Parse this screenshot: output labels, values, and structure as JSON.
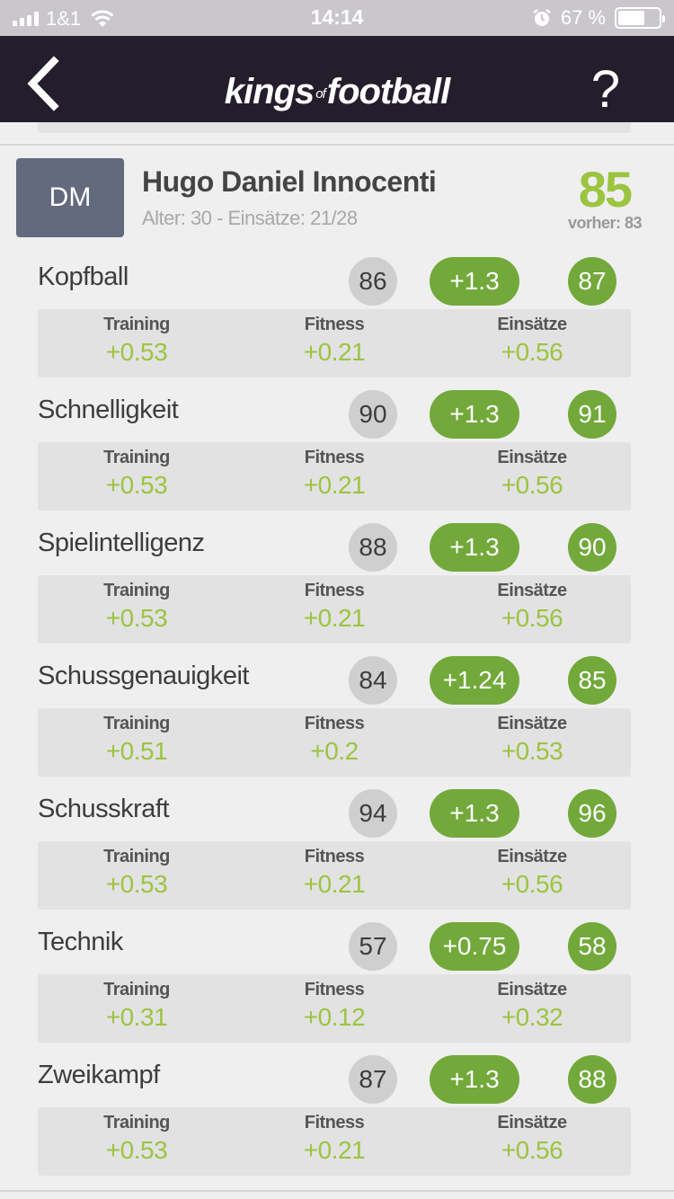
{
  "status_bar": {
    "carrier": "1&1",
    "time": "14:14",
    "battery": "67 %",
    "battery_level": 0.67
  },
  "nav": {
    "logo_kings": "kings",
    "logo_of": "of",
    "logo_football": "football",
    "help": "?"
  },
  "player": {
    "position": "DM",
    "name": "Hugo Daniel Innocenti",
    "meta": "Alter: 30 - Einsätze: 21/28",
    "rating": "85",
    "previous": "vorher: 83"
  },
  "headers": {
    "training": "Training",
    "fitness": "Fitness",
    "einsaetze": "Einsätze"
  },
  "attributes": [
    {
      "label": "Kopfball",
      "old": "86",
      "delta": "+1.3",
      "new": "87",
      "training": "+0.53",
      "fitness": "+0.21",
      "einsaetze": "+0.56"
    },
    {
      "label": "Schnelligkeit",
      "old": "90",
      "delta": "+1.3",
      "new": "91",
      "training": "+0.53",
      "fitness": "+0.21",
      "einsaetze": "+0.56"
    },
    {
      "label": "Spielintelligenz",
      "old": "88",
      "delta": "+1.3",
      "new": "90",
      "training": "+0.53",
      "fitness": "+0.21",
      "einsaetze": "+0.56"
    },
    {
      "label": "Schussgenauigkeit",
      "old": "84",
      "delta": "+1.24",
      "new": "85",
      "training": "+0.51",
      "fitness": "+0.2",
      "einsaetze": "+0.53"
    },
    {
      "label": "Schusskraft",
      "old": "94",
      "delta": "+1.3",
      "new": "96",
      "training": "+0.53",
      "fitness": "+0.21",
      "einsaetze": "+0.56"
    },
    {
      "label": "Technik",
      "old": "57",
      "delta": "+0.75",
      "new": "58",
      "training": "+0.31",
      "fitness": "+0.12",
      "einsaetze": "+0.32"
    },
    {
      "label": "Zweikampf",
      "old": "87",
      "delta": "+1.3",
      "new": "88",
      "training": "+0.53",
      "fitness": "+0.21",
      "einsaetze": "+0.56"
    }
  ]
}
